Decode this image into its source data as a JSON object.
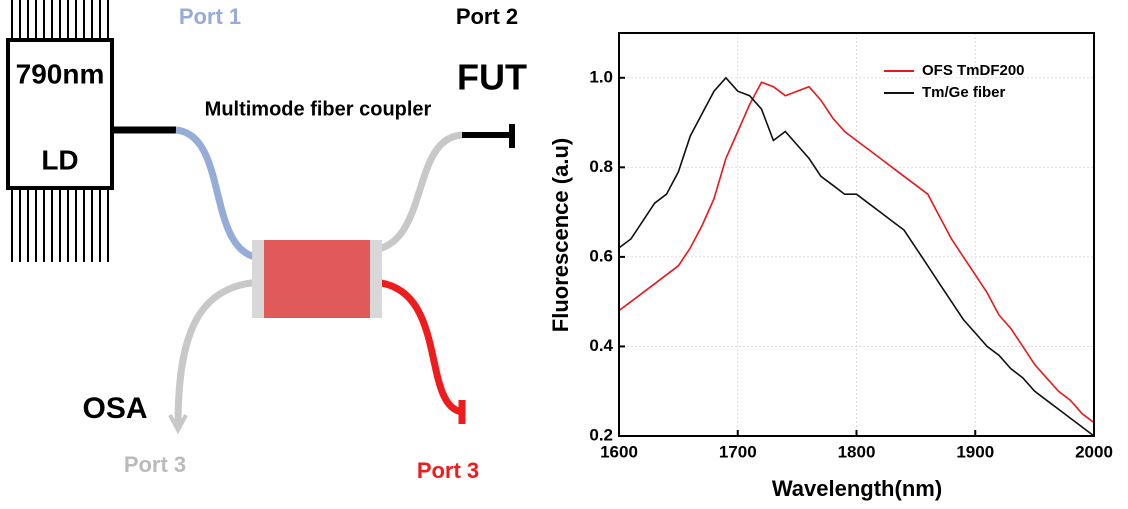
{
  "diagram": {
    "source_top": "790nm",
    "source_bottom": "LD",
    "port1": "Port 1",
    "port2": "Port 2",
    "fut": "FUT",
    "coupler": "Multimode fiber coupler",
    "osa": "OSA",
    "port3_left": "Port 3",
    "port3_right": "Port 3"
  },
  "chart_data": {
    "type": "line",
    "x_label": "Wavelength(nm)",
    "y_label": "Fluorescence (a.u)",
    "x": [
      1600,
      1610,
      1620,
      1630,
      1640,
      1650,
      1660,
      1670,
      1680,
      1690,
      1700,
      1710,
      1720,
      1730,
      1740,
      1750,
      1760,
      1770,
      1780,
      1790,
      1800,
      1810,
      1820,
      1830,
      1840,
      1850,
      1860,
      1870,
      1880,
      1890,
      1900,
      1910,
      1920,
      1930,
      1940,
      1950,
      1960,
      1970,
      1980,
      1990,
      2000
    ],
    "series": [
      {
        "name": "OFS TmDF200",
        "color": "#e8181a",
        "values": [
          0.48,
          0.5,
          0.52,
          0.54,
          0.56,
          0.58,
          0.62,
          0.67,
          0.73,
          0.82,
          0.88,
          0.94,
          0.99,
          0.98,
          0.96,
          0.97,
          0.98,
          0.95,
          0.91,
          0.88,
          0.86,
          0.84,
          0.82,
          0.8,
          0.78,
          0.76,
          0.74,
          0.69,
          0.64,
          0.6,
          0.56,
          0.52,
          0.47,
          0.44,
          0.4,
          0.36,
          0.33,
          0.3,
          0.28,
          0.25,
          0.23
        ]
      },
      {
        "name": "Tm/Ge fiber",
        "color": "#111111",
        "values": [
          0.62,
          0.64,
          0.68,
          0.72,
          0.74,
          0.79,
          0.87,
          0.92,
          0.97,
          1.0,
          0.97,
          0.96,
          0.93,
          0.86,
          0.88,
          0.85,
          0.82,
          0.78,
          0.76,
          0.74,
          0.74,
          0.72,
          0.7,
          0.68,
          0.66,
          0.62,
          0.58,
          0.54,
          0.5,
          0.46,
          0.43,
          0.4,
          0.38,
          0.35,
          0.33,
          0.3,
          0.28,
          0.26,
          0.24,
          0.22,
          0.2
        ]
      }
    ],
    "xlim": [
      1600,
      2000
    ],
    "xticks": [
      1600,
      1700,
      1800,
      1900,
      2000
    ],
    "ylim": [
      0.2,
      1.1
    ],
    "yticks": [
      0.2,
      0.4,
      0.6,
      0.8,
      {
        "value": 1,
        "label": "1.0"
      }
    ],
    "grid": true,
    "legend": "top-right"
  }
}
